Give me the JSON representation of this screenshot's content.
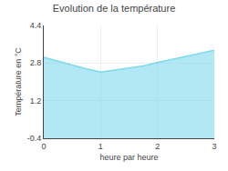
{
  "chart_data": {
    "type": "area",
    "title": "Evolution de la température",
    "xlabel": "heure par heure",
    "ylabel": "Température en °C",
    "x": [
      0,
      0.25,
      0.5,
      0.75,
      1.0,
      1.25,
      1.5,
      1.75,
      2.0,
      2.25,
      2.5,
      2.75,
      3.0
    ],
    "series": [
      {
        "values": [
          3.05,
          2.88,
          2.72,
          2.55,
          2.42,
          2.5,
          2.58,
          2.68,
          2.82,
          2.95,
          3.08,
          3.2,
          3.35
        ],
        "color": "#7dd8ed"
      }
    ],
    "xlim": [
      0,
      3
    ],
    "ylim": [
      -0.4,
      4.4
    ],
    "xticks": [
      0,
      1,
      2,
      3
    ],
    "yticks": [
      -0.4,
      1.2,
      2.8,
      4.4
    ],
    "grid": true
  }
}
